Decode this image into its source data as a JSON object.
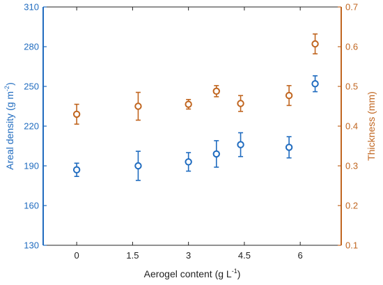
{
  "chart_data": {
    "type": "scatter",
    "xlabel_main": "Aerogel content (g L",
    "xlabel_sup": "-1",
    "xlabel_close": ")",
    "ylabel_left_main": "Areal density (g m",
    "ylabel_left_sup": "-2",
    "ylabel_left_close": ")",
    "ylabel_right": "Thickness (mm)",
    "xlim": [
      -0.9,
      7.1
    ],
    "x_ticks": [
      0,
      1.5,
      3,
      4.5,
      6
    ],
    "x_tick_labels": [
      "0",
      "1.5",
      "3",
      "4.5",
      "6"
    ],
    "ylim_left": [
      130,
      310
    ],
    "y_left_ticks": [
      130,
      160,
      190,
      220,
      250,
      280,
      310
    ],
    "ylim_right": [
      0.1,
      0.7
    ],
    "y_right_ticks": [
      0.1,
      0.2,
      0.3,
      0.4,
      0.5,
      0.6,
      0.7
    ],
    "y_right_tick_labels": [
      "0.1",
      "0.2",
      "0.3",
      "0.4",
      "0.5",
      "0.6",
      "0.7"
    ],
    "colors": {
      "left_axis": "#1f6bbf",
      "right_axis": "#c0651f",
      "x_axis": "#222222"
    },
    "series": [
      {
        "axis": "left",
        "color": "#1f6bbf",
        "points": [
          {
            "x": 0,
            "y": 187,
            "err": 5
          },
          {
            "x": 1.65,
            "y": 190,
            "err": 11
          },
          {
            "x": 3,
            "y": 193,
            "err": 7
          },
          {
            "x": 3.75,
            "y": 199,
            "err": 10
          },
          {
            "x": 4.4,
            "y": 206,
            "err": 9
          },
          {
            "x": 5.7,
            "y": 204,
            "err": 8
          },
          {
            "x": 6.4,
            "y": 252,
            "err": 6
          }
        ]
      },
      {
        "axis": "right",
        "color": "#c0651f",
        "points": [
          {
            "x": 0,
            "y": 0.43,
            "err": 0.025
          },
          {
            "x": 1.65,
            "y": 0.45,
            "err": 0.035
          },
          {
            "x": 3,
            "y": 0.455,
            "err": 0.012
          },
          {
            "x": 3.75,
            "y": 0.488,
            "err": 0.014
          },
          {
            "x": 4.4,
            "y": 0.457,
            "err": 0.02
          },
          {
            "x": 5.7,
            "y": 0.477,
            "err": 0.025
          },
          {
            "x": 6.4,
            "y": 0.607,
            "err": 0.025
          }
        ]
      }
    ]
  }
}
